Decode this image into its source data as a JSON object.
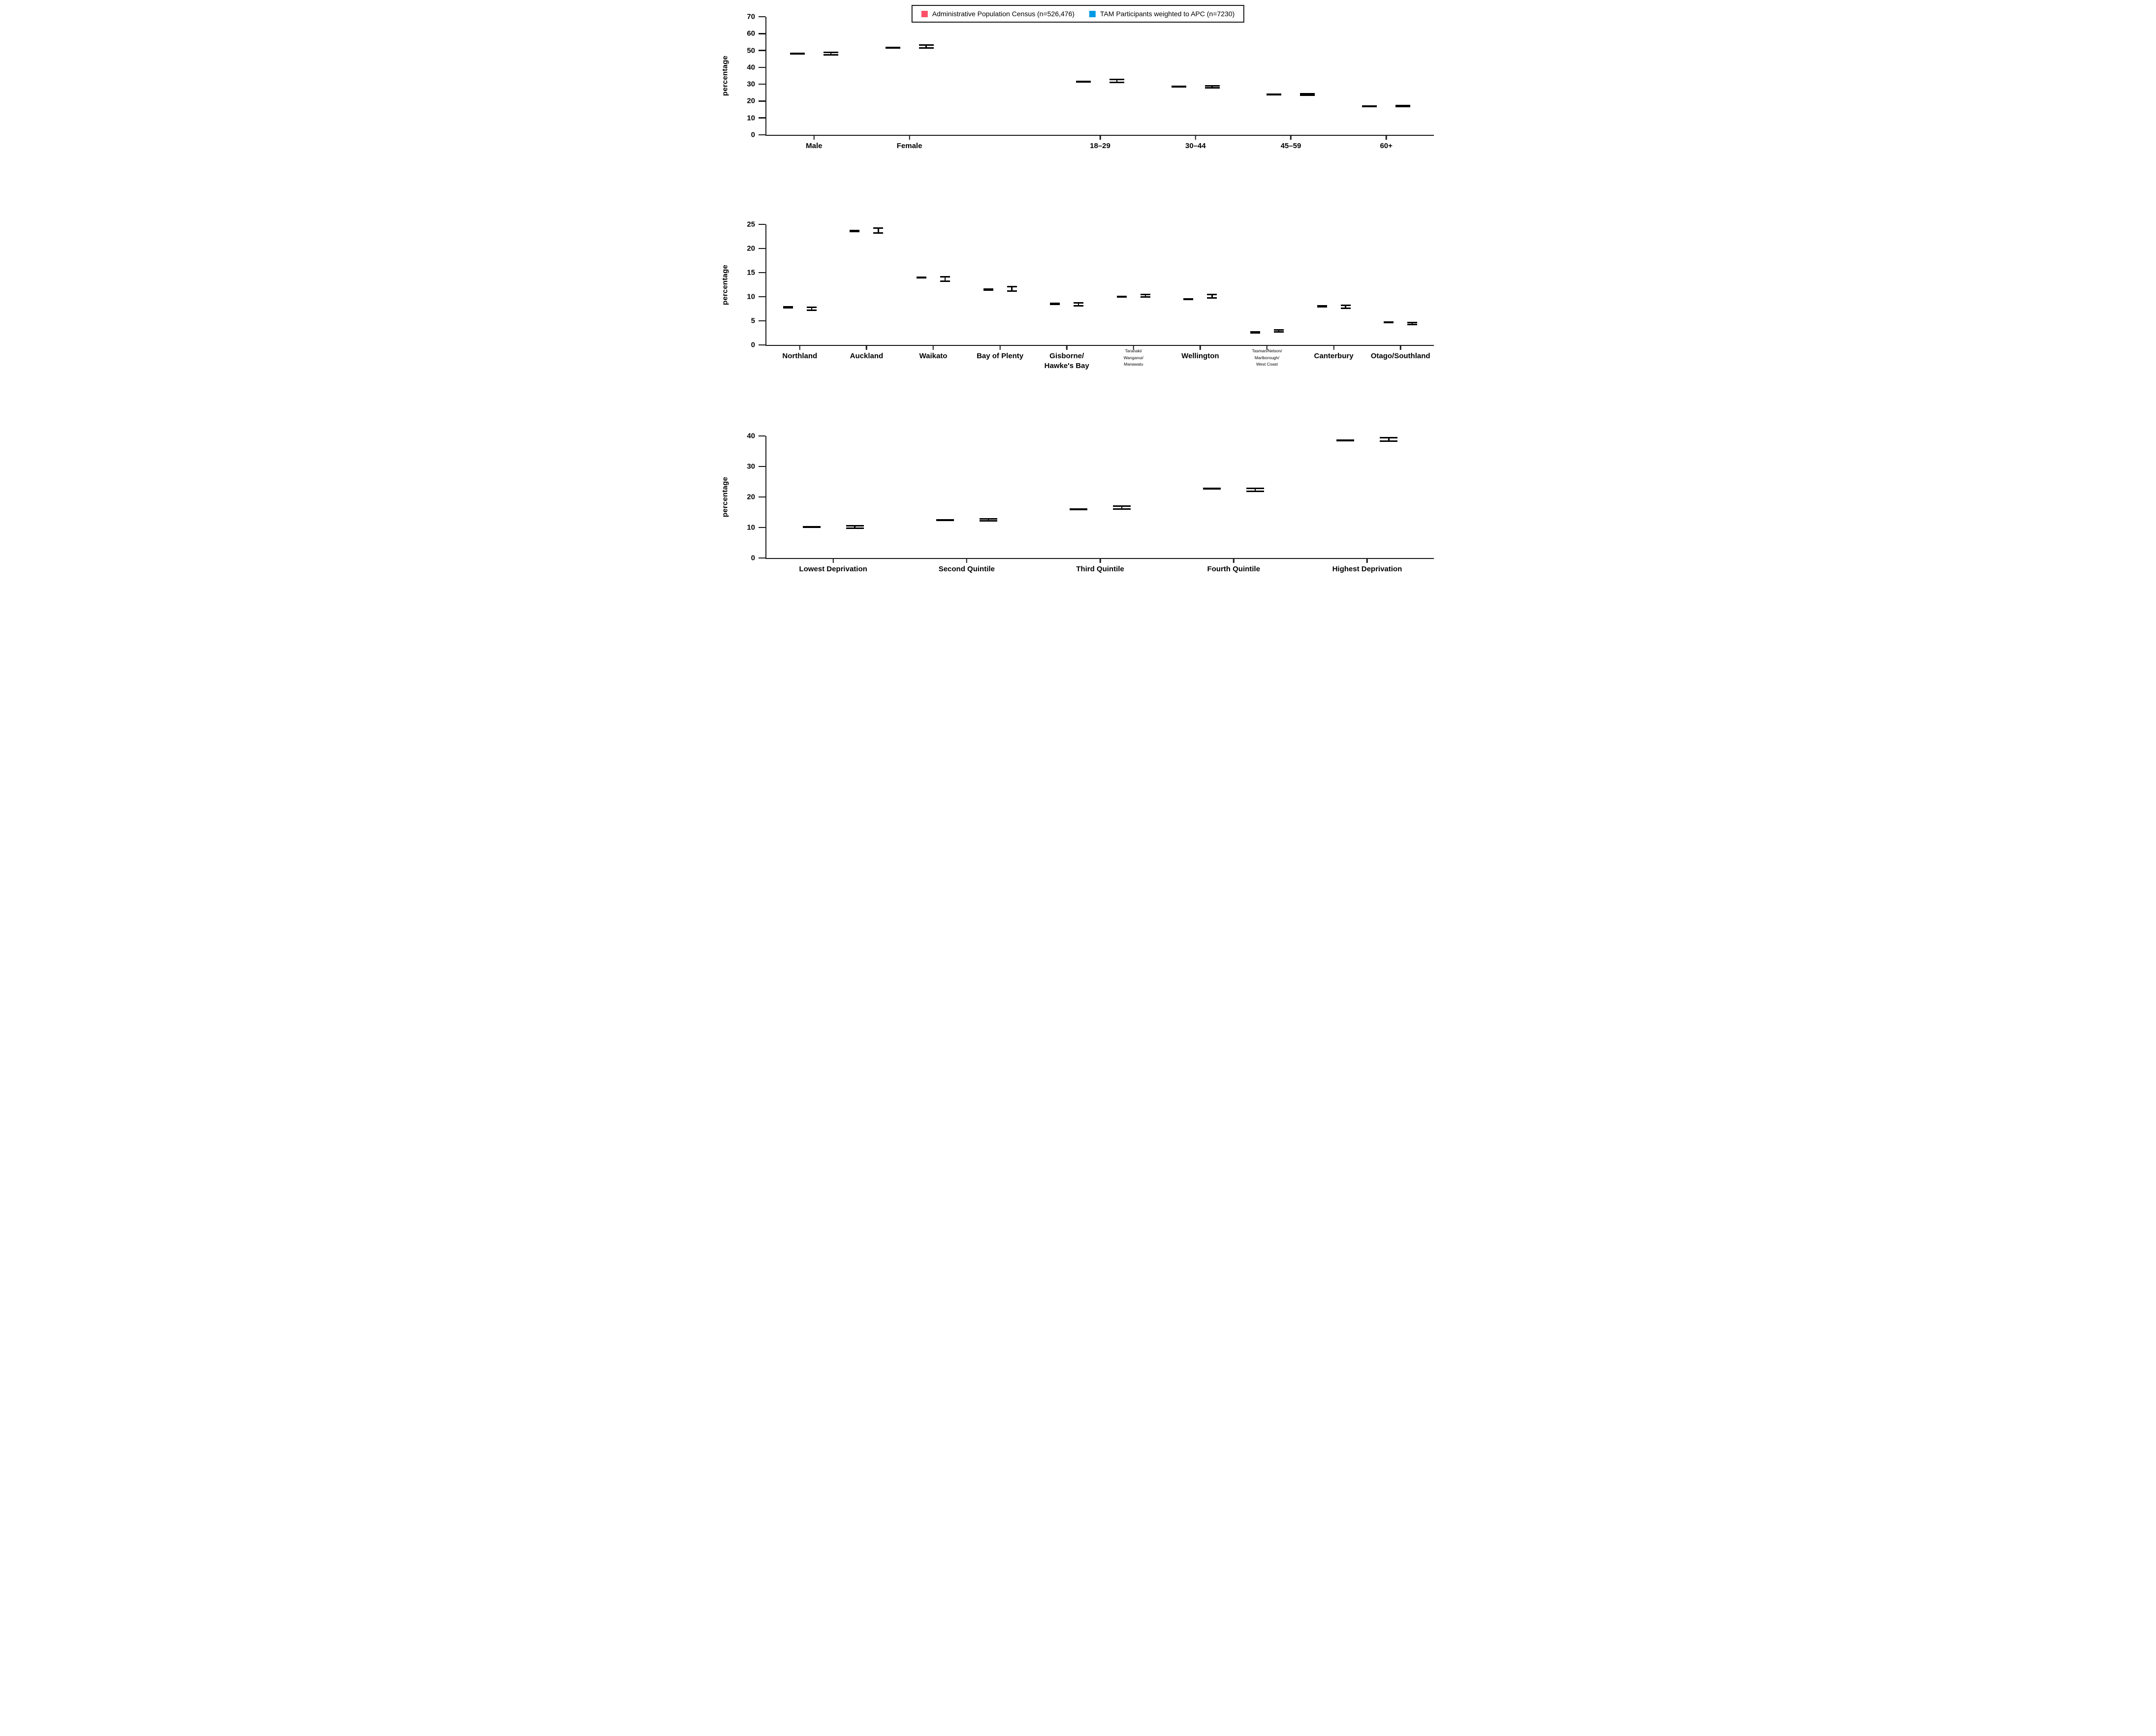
{
  "figure": {
    "legend": {
      "items": [
        {
          "label": "Administrative Population Census (n=526,476)",
          "series": "apc"
        },
        {
          "label": "TAM Participants weighted to APC (n=7230)",
          "series": "tam"
        }
      ]
    },
    "colors": {
      "apc": "#FB5168",
      "tam": "#0099E6",
      "axis": "#1A1A1A",
      "error": "#000000"
    }
  },
  "chart_data": [
    {
      "type": "bar",
      "id": "sex-and-age",
      "ylabel": "percentage",
      "ylim": [
        0,
        70
      ],
      "yticks": [
        0,
        10,
        20,
        30,
        40,
        50,
        60,
        70
      ],
      "grid": false,
      "legend_position": "top-center",
      "categories": [
        {
          "label": "Male",
          "small": false
        },
        {
          "label": "Female",
          "small": false,
          "spacer_after": true
        },
        {
          "label": "18–29",
          "small": false
        },
        {
          "label": "30–44",
          "small": false
        },
        {
          "label": "45–59",
          "small": false
        },
        {
          "label": "60+",
          "small": false
        }
      ],
      "series": [
        {
          "key": "apc",
          "name": "Administrative Population Census (n=526,476)",
          "values": [
            48.2,
            51.7,
            31.5,
            28.5,
            24.0,
            17.0
          ],
          "errors": [
            0.1,
            0.1,
            0.1,
            0.1,
            0.1,
            0.1
          ]
        },
        {
          "key": "tam",
          "name": "TAM Participants weighted to APC (n=7230)",
          "values": [
            48.2,
            52.3,
            32.0,
            28.4,
            24.0,
            17.1
          ],
          "errors": [
            0.8,
            0.8,
            0.8,
            0.5,
            0.5,
            0.4
          ]
        }
      ]
    },
    {
      "type": "bar",
      "id": "region",
      "ylabel": "percentage",
      "ylim": [
        0,
        25
      ],
      "yticks": [
        0,
        5,
        10,
        15,
        20,
        25
      ],
      "grid": false,
      "categories": [
        {
          "label": "Northland",
          "small": false
        },
        {
          "label": "Auckland",
          "small": false
        },
        {
          "label": "Waikato",
          "small": false
        },
        {
          "label": "Bay of Plenty",
          "small": false
        },
        {
          "label": "Gisborne/\nHawke's Bay",
          "small": false
        },
        {
          "label": "Taranaki/\nWanganui/\nManawatu",
          "small": true
        },
        {
          "label": "Wellington",
          "small": false
        },
        {
          "label": "Tasman/Nelson/\nMarlborough/\nWest Coast",
          "small": true
        },
        {
          "label": "Canterbury",
          "small": false
        },
        {
          "label": "Otago/Southland",
          "small": false
        }
      ],
      "series": [
        {
          "key": "apc",
          "name": "Administrative Population Census (n=526,476)",
          "values": [
            7.8,
            23.6,
            14.0,
            11.5,
            8.5,
            10.0,
            9.5,
            2.6,
            8.0,
            4.7
          ],
          "errors": [
            0.08,
            0.08,
            0.08,
            0.08,
            0.08,
            0.08,
            0.08,
            0.08,
            0.08,
            0.08
          ]
        },
        {
          "key": "tam",
          "name": "TAM Participants weighted to APC (n=7230)",
          "values": [
            7.5,
            23.7,
            13.7,
            11.6,
            8.4,
            10.2,
            10.1,
            2.9,
            7.9,
            4.4
          ],
          "errors": [
            0.35,
            0.5,
            0.45,
            0.45,
            0.3,
            0.3,
            0.4,
            0.2,
            0.3,
            0.2
          ]
        }
      ]
    },
    {
      "type": "bar",
      "id": "deprivation",
      "ylabel": "percentage",
      "ylim": [
        0,
        40
      ],
      "yticks": [
        0,
        10,
        20,
        30,
        40
      ],
      "grid": false,
      "categories": [
        {
          "label": "Lowest Deprivation",
          "small": false
        },
        {
          "label": "Second Quintile",
          "small": false
        },
        {
          "label": "Third Quintile",
          "small": false
        },
        {
          "label": "Fourth Quintile",
          "small": false
        },
        {
          "label": "Highest Deprivation",
          "small": false
        }
      ],
      "series": [
        {
          "key": "apc",
          "name": "Administrative Population Census (n=526,476)",
          "values": [
            10.1,
            12.5,
            16.0,
            22.8,
            38.5
          ],
          "errors": [
            0.08,
            0.08,
            0.08,
            0.08,
            0.08
          ]
        },
        {
          "key": "tam",
          "name": "TAM Participants weighted to APC (n=7230)",
          "values": [
            10.1,
            12.5,
            16.5,
            22.3,
            38.9
          ],
          "errors": [
            0.4,
            0.35,
            0.5,
            0.5,
            0.6
          ]
        }
      ]
    }
  ]
}
